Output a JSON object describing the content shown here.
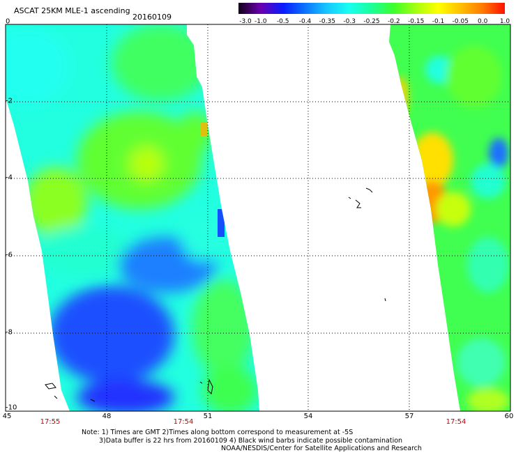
{
  "header": {
    "title": "ASCAT 25KM MLE-1 ascending",
    "date": "20160109"
  },
  "colorbar": {
    "labels": [
      "-3.0",
      "-1.0",
      "-0.5",
      "-0.4",
      "-0.35",
      "-0.3",
      "-0.25",
      "-0.2",
      "-0.15",
      "-0.1",
      "-0.05",
      "0.0",
      "1.0"
    ],
    "colors": [
      "#120016",
      "#6a00b0",
      "#0a1aff",
      "#0a74ff",
      "#16c8ff",
      "#1affee",
      "#1aff9a",
      "#3cff2a",
      "#a6ff10",
      "#ffff00",
      "#ffc000",
      "#ff7a00",
      "#ff1000"
    ]
  },
  "axes": {
    "y_ticks": [
      "0",
      "-2",
      "-4",
      "-6",
      "-8",
      "-10"
    ],
    "x_ticks": [
      "45",
      "48",
      "51",
      "54",
      "57",
      "60"
    ],
    "times": [
      "17:55",
      "17:54",
      "17:54"
    ]
  },
  "notes": {
    "line1": "Note: 1) Times are GMT 2)Times along bottom correspond to measurement at -5S",
    "line2": "3)Data buffer is 22 hrs from 20160109 4) Black wind barbs indicate possible contamination",
    "line3": "NOAA/NESDIS/Center for Satellite Applications and Research"
  }
}
